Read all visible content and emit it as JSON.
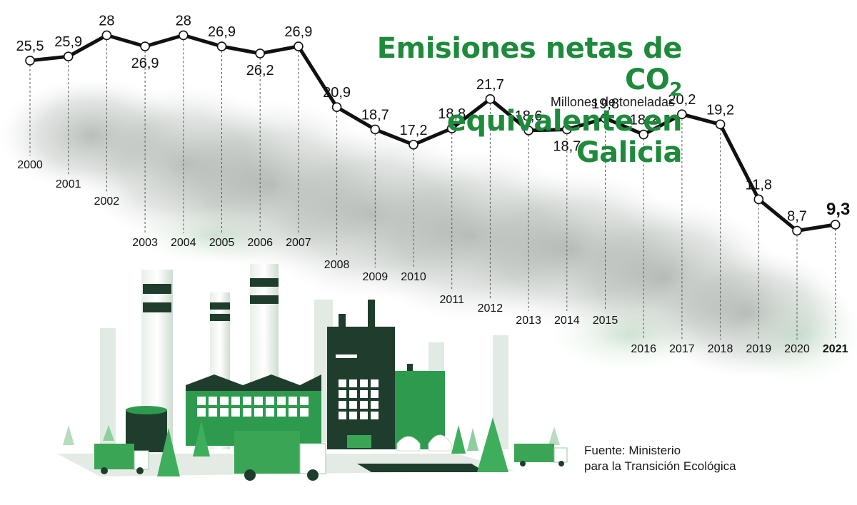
{
  "colors": {
    "title": "#1e8a3c",
    "line": "#111111",
    "smoke": "#9aa39c",
    "factory_dark": "#1f3d2c",
    "factory_green": "#2e9a4e",
    "tree": "#3fae5c",
    "truck": "#3aa655"
  },
  "title_line1": "Emisiones netas de CO",
  "title_sub": "2",
  "title_line2": "equivalente en Galicia",
  "subtitle": "Millones de toneladas",
  "source_label": "Fuente:",
  "source_text1": " Ministerio",
  "source_text2": "para la Transición Ecológica",
  "chart_data": {
    "type": "line",
    "title": "Emisiones netas de CO2 equivalente en Galicia",
    "subtitle": "Millones de toneladas",
    "x": [
      "2000",
      "2001",
      "2002",
      "2003",
      "2004",
      "2005",
      "2006",
      "2007",
      "2008",
      "2009",
      "2010",
      "2011",
      "2012",
      "2013",
      "2014",
      "2015",
      "2016",
      "2017",
      "2018",
      "2019",
      "2020",
      "2021"
    ],
    "values": [
      25.5,
      25.9,
      28,
      26.9,
      28,
      26.9,
      26.2,
      26.9,
      20.9,
      18.7,
      17.2,
      18.8,
      21.7,
      18.6,
      18.7,
      19.8,
      18.2,
      20.2,
      19.2,
      11.8,
      8.7,
      9.3
    ],
    "value_labels": [
      "25,5",
      "25,9",
      "28",
      "26,9",
      "28",
      "26,9",
      "26,2",
      "26,9",
      "20,9",
      "18,7",
      "17,2",
      "18,8",
      "21,7",
      "18,6",
      "18,7",
      "19,8",
      "18,2",
      "20,2",
      "19,2",
      "11,8",
      "8,7",
      "9,3"
    ],
    "highlight": "2021",
    "grid": false,
    "legend": "none"
  }
}
